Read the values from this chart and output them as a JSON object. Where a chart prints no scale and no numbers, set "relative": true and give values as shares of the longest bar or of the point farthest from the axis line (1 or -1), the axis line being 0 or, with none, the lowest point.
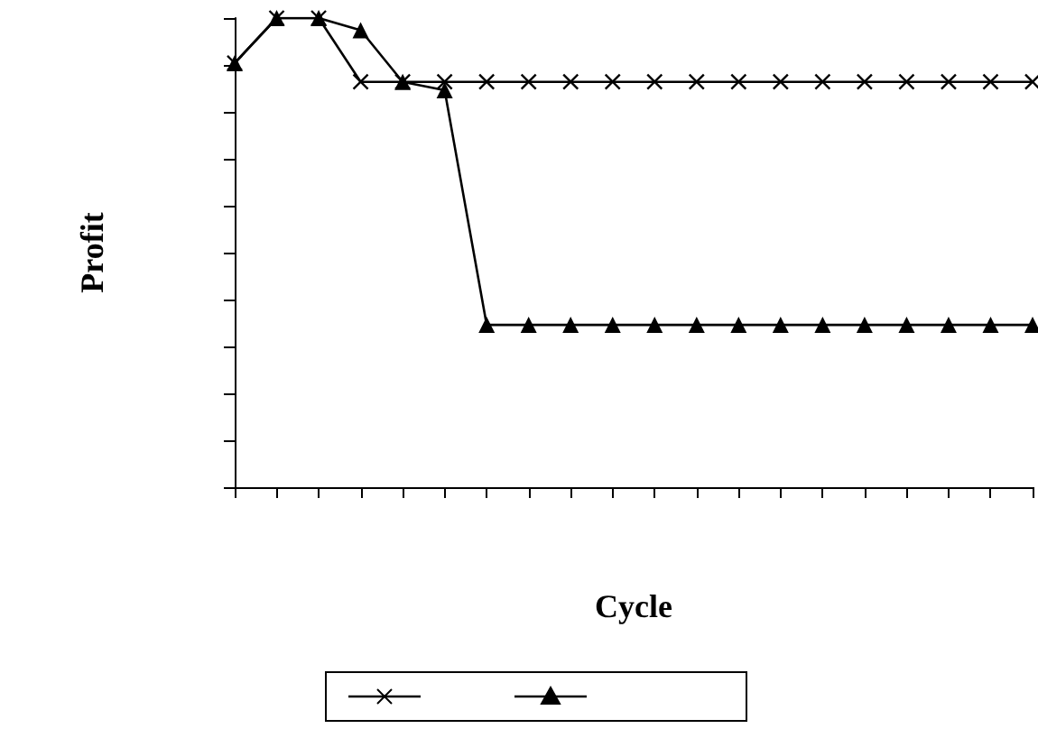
{
  "chart_data": {
    "type": "line",
    "relative": true,
    "xlabel": "Cycle",
    "ylabel": "Profit",
    "categories": [
      null,
      null,
      null,
      null,
      null,
      null,
      null,
      null,
      null,
      null,
      null,
      null,
      null,
      null,
      null,
      null,
      null,
      null,
      null,
      null
    ],
    "series": [
      {
        "color": "#000000",
        "marker": "cross",
        "values": [
          0.904,
          1,
          1,
          0.864,
          0.864,
          0.864,
          0.864,
          0.864,
          0.864,
          0.864,
          0.864,
          0.864,
          0.864,
          0.864,
          0.864,
          0.864,
          0.864,
          0.864,
          0.864,
          0.864
        ]
      },
      {
        "color": "#000000",
        "marker": "triangle",
        "values": [
          0.904,
          1,
          1,
          0.974,
          0.864,
          0.846,
          0.346,
          0.346,
          0.346,
          0.346,
          0.346,
          0.346,
          0.346,
          0.346,
          0.346,
          0.346,
          0.346,
          0.346,
          0.346,
          0.346
        ]
      }
    ],
    "grid": false,
    "line_style": "solid"
  }
}
